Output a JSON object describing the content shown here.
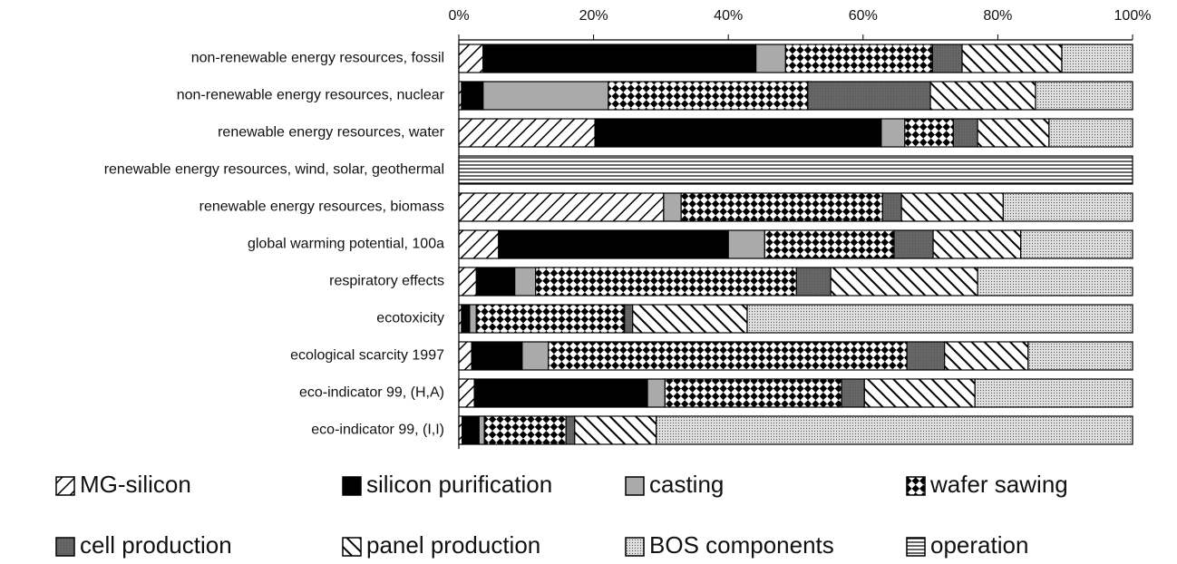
{
  "chart_data": {
    "type": "stacked_barh",
    "categories": [
      "non-renewable energy resources, fossil",
      "non-renewable energy resources, nuclear",
      "renewable energy resources, water",
      "renewable energy resources, wind, solar, geothermal",
      "renewable energy resources, biomass",
      "global warming potential, 100a",
      "respiratory effects",
      "ecotoxicity",
      "ecological scarcity 1997",
      "eco-indicator 99, (H,A)",
      "eco-indicator 99, (I,I)"
    ],
    "series": [
      {
        "name": "MG-silicon",
        "pattern": "diagonal-up",
        "color": "#000000",
        "values": [
          3.6,
          0.4,
          20.2,
          0,
          30.4,
          5.9,
          2.6,
          0.4,
          1.9,
          2.3,
          0.5
        ]
      },
      {
        "name": "silicon purification",
        "pattern": "solid",
        "color": "#000000",
        "values": [
          40.5,
          3.2,
          42.5,
          0,
          0,
          34.1,
          5.7,
          1.2,
          7.5,
          25.7,
          2.5
        ]
      },
      {
        "name": "casting",
        "pattern": "solid",
        "color": "#aaaaaa",
        "values": [
          4.4,
          18.6,
          3.5,
          0,
          2.6,
          5.4,
          3.1,
          1.0,
          3.9,
          2.6,
          0.8
        ]
      },
      {
        "name": "wafer sawing",
        "pattern": "checker",
        "color": "#000000",
        "values": [
          21.8,
          29.6,
          7.2,
          0,
          29.9,
          19.2,
          38.7,
          22.0,
          53.2,
          26.2,
          12.1
        ]
      },
      {
        "name": "cell production",
        "pattern": "dots",
        "color": "#666666",
        "values": [
          4.4,
          18.2,
          3.6,
          0,
          2.8,
          5.8,
          5.1,
          1.2,
          5.6,
          3.4,
          1.3
        ]
      },
      {
        "name": "panel production",
        "pattern": "diagonal-down",
        "color": "#000000",
        "values": [
          14.8,
          15.6,
          10.6,
          0,
          15.1,
          13.0,
          21.8,
          17.0,
          12.4,
          16.4,
          12.1
        ]
      },
      {
        "name": "BOS components",
        "pattern": "dots",
        "color": "#e0e0e0",
        "values": [
          10.5,
          14.4,
          12.4,
          0,
          19.2,
          16.6,
          23.0,
          57.2,
          15.5,
          23.4,
          70.7
        ]
      },
      {
        "name": "operation",
        "pattern": "horizontal",
        "color": "#000000",
        "values": [
          0,
          0,
          0,
          100,
          0,
          0,
          0,
          0,
          0,
          0,
          0
        ]
      }
    ],
    "xlim": [
      0,
      100
    ],
    "xticks": [
      {
        "value": 0,
        "label": "0%"
      },
      {
        "value": 20,
        "label": "20%"
      },
      {
        "value": 40,
        "label": "40%"
      },
      {
        "value": 60,
        "label": "60%"
      },
      {
        "value": 80,
        "label": "80%"
      },
      {
        "value": 100,
        "label": "100%"
      }
    ]
  }
}
